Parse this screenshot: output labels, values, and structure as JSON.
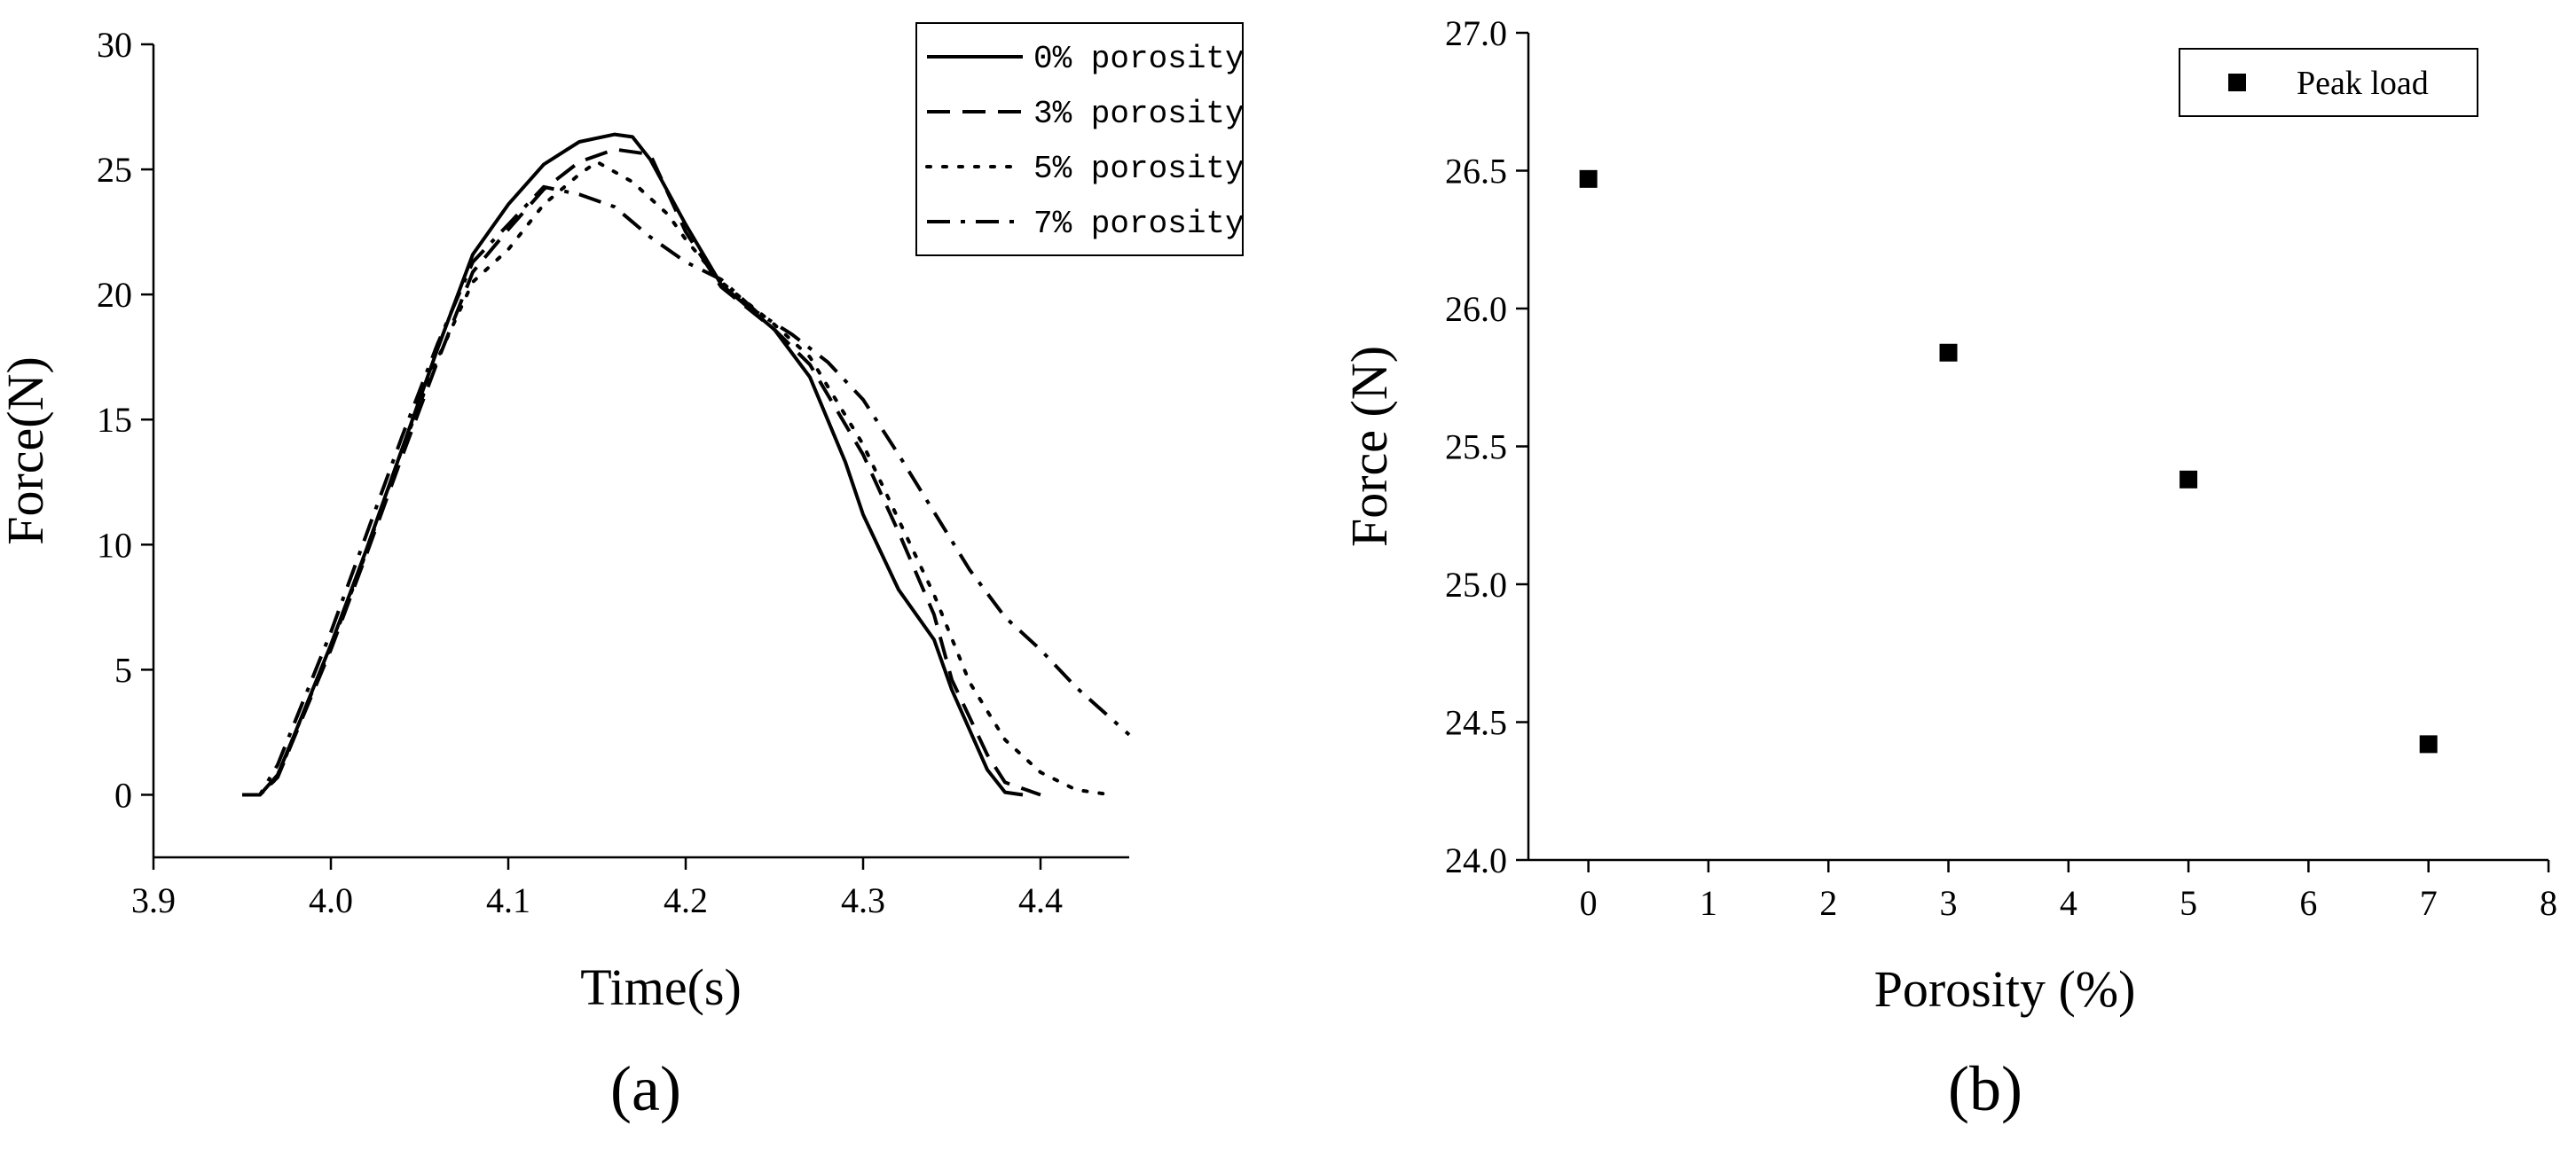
{
  "chart_data": [
    {
      "type": "line",
      "panel_label": "(a)",
      "xlabel": "Time(s)",
      "ylabel": "Force(N)",
      "xlim": [
        3.9,
        4.45
      ],
      "ylim": [
        -2.5,
        30
      ],
      "xticks": [
        3.9,
        4.0,
        4.1,
        4.2,
        4.3,
        4.4
      ],
      "xtick_labels": [
        "3.9",
        "4.0",
        "4.1",
        "4.2",
        "4.3",
        "4.4"
      ],
      "yticks": [
        0,
        5,
        10,
        15,
        20,
        25,
        30
      ],
      "ytick_labels": [
        "0",
        "5",
        "10",
        "15",
        "20",
        "25",
        "30"
      ],
      "grid": false,
      "legend_position": "top-right",
      "series": [
        {
          "name": "0% porosity",
          "dash": "solid",
          "color": "#000000",
          "points": [
            [
              3.95,
              0
            ],
            [
              3.96,
              0
            ],
            [
              3.97,
              0.8
            ],
            [
              3.98,
              2.5
            ],
            [
              4.0,
              6.0
            ],
            [
              4.02,
              9.8
            ],
            [
              4.04,
              13.8
            ],
            [
              4.06,
              17.8
            ],
            [
              4.08,
              21.6
            ],
            [
              4.1,
              23.6
            ],
            [
              4.12,
              25.2
            ],
            [
              4.14,
              26.1
            ],
            [
              4.16,
              26.4
            ],
            [
              4.17,
              26.3
            ],
            [
              4.18,
              25.4
            ],
            [
              4.2,
              22.8
            ],
            [
              4.22,
              20.4
            ],
            [
              4.25,
              18.6
            ],
            [
              4.27,
              16.7
            ],
            [
              4.29,
              13.3
            ],
            [
              4.3,
              11.2
            ],
            [
              4.32,
              8.2
            ],
            [
              4.34,
              6.2
            ],
            [
              4.35,
              4.2
            ],
            [
              4.37,
              1.0
            ],
            [
              4.38,
              0.1
            ],
            [
              4.39,
              0
            ]
          ]
        },
        {
          "name": "3% porosity",
          "dash": "dashed",
          "color": "#000000",
          "points": [
            [
              3.95,
              0
            ],
            [
              3.96,
              0
            ],
            [
              3.97,
              0.7
            ],
            [
              3.98,
              2.4
            ],
            [
              4.0,
              5.8
            ],
            [
              4.02,
              9.6
            ],
            [
              4.04,
              13.5
            ],
            [
              4.06,
              17.3
            ],
            [
              4.08,
              20.9
            ],
            [
              4.1,
              22.6
            ],
            [
              4.12,
              24.2
            ],
            [
              4.14,
              25.3
            ],
            [
              4.16,
              25.8
            ],
            [
              4.18,
              25.6
            ],
            [
              4.2,
              22.5
            ],
            [
              4.22,
              20.3
            ],
            [
              4.25,
              18.6
            ],
            [
              4.27,
              17.2
            ],
            [
              4.3,
              13.6
            ],
            [
              4.32,
              10.5
            ],
            [
              4.34,
              7.2
            ],
            [
              4.35,
              4.6
            ],
            [
              4.37,
              1.6
            ],
            [
              4.38,
              0.5
            ],
            [
              4.4,
              0
            ]
          ]
        },
        {
          "name": "5% porosity",
          "dash": "dotted",
          "color": "#000000",
          "points": [
            [
              3.96,
              0
            ],
            [
              3.97,
              0.7
            ],
            [
              3.98,
              2.5
            ],
            [
              4.0,
              5.9
            ],
            [
              4.02,
              9.7
            ],
            [
              4.04,
              13.8
            ],
            [
              4.06,
              17.4
            ],
            [
              4.08,
              20.5
            ],
            [
              4.1,
              21.8
            ],
            [
              4.12,
              23.6
            ],
            [
              4.14,
              24.8
            ],
            [
              4.15,
              25.3
            ],
            [
              4.17,
              24.5
            ],
            [
              4.19,
              23.2
            ],
            [
              4.2,
              22.2
            ],
            [
              4.22,
              20.5
            ],
            [
              4.25,
              18.8
            ],
            [
              4.27,
              17.5
            ],
            [
              4.3,
              14.0
            ],
            [
              4.32,
              11.0
            ],
            [
              4.34,
              8.0
            ],
            [
              4.36,
              4.5
            ],
            [
              4.38,
              2.2
            ],
            [
              4.4,
              0.9
            ],
            [
              4.42,
              0.2
            ],
            [
              4.44,
              0
            ]
          ]
        },
        {
          "name": "7% porosity",
          "dash": "dashdot",
          "color": "#000000",
          "points": [
            [
              3.95,
              0
            ],
            [
              3.96,
              0
            ],
            [
              3.97,
              1.2
            ],
            [
              4.0,
              6.5
            ],
            [
              4.02,
              10.4
            ],
            [
              4.04,
              14.3
            ],
            [
              4.06,
              18.0
            ],
            [
              4.08,
              21.3
            ],
            [
              4.1,
              22.8
            ],
            [
              4.12,
              24.3
            ],
            [
              4.14,
              24.0
            ],
            [
              4.16,
              23.5
            ],
            [
              4.18,
              22.3
            ],
            [
              4.2,
              21.3
            ],
            [
              4.22,
              20.6
            ],
            [
              4.24,
              19.3
            ],
            [
              4.26,
              18.4
            ],
            [
              4.28,
              17.3
            ],
            [
              4.3,
              15.8
            ],
            [
              4.32,
              13.6
            ],
            [
              4.34,
              11.3
            ],
            [
              4.36,
              9.0
            ],
            [
              4.38,
              7.1
            ],
            [
              4.4,
              5.8
            ],
            [
              4.42,
              4.3
            ],
            [
              4.45,
              2.4
            ]
          ]
        }
      ]
    },
    {
      "type": "scatter",
      "panel_label": "(b)",
      "xlabel": "Porosity (%)",
      "ylabel": "Force (N)",
      "xlim": [
        -0.5,
        8
      ],
      "ylim": [
        24.0,
        27.0
      ],
      "xticks": [
        0,
        1,
        2,
        3,
        4,
        5,
        6,
        7,
        8
      ],
      "xtick_labels": [
        "0",
        "1",
        "2",
        "3",
        "4",
        "5",
        "6",
        "7",
        "8"
      ],
      "yticks": [
        24.0,
        24.5,
        25.0,
        25.5,
        26.0,
        26.5,
        27.0
      ],
      "ytick_labels": [
        "24.0",
        "24.5",
        "25.0",
        "25.5",
        "26.0",
        "26.5",
        "27.0"
      ],
      "grid": false,
      "legend_position": "top-right",
      "series": [
        {
          "name": "Peak load",
          "marker": "square",
          "color": "#000000",
          "x": [
            0,
            3,
            5,
            7
          ],
          "y": [
            26.47,
            25.84,
            25.38,
            24.42
          ]
        }
      ]
    }
  ]
}
